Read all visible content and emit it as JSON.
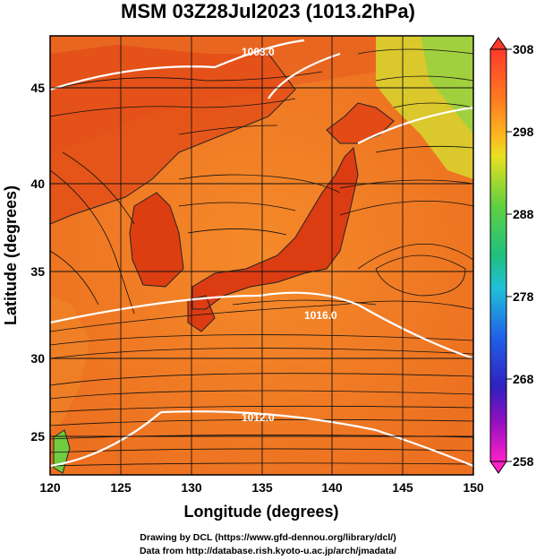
{
  "title": "MSM 03Z28Jul2023 (1013.2hPa)",
  "xlabel": "Longitude (degrees)",
  "ylabel": "Latitude  (degrees)",
  "xticks": [
    "120",
    "125",
    "130",
    "135",
    "140",
    "145",
    "150"
  ],
  "yticks": [
    "25",
    "30",
    "35",
    "40",
    "45"
  ],
  "colorbar": {
    "ticks": [
      "308",
      "298",
      "288",
      "278",
      "268",
      "258"
    ],
    "colors": [
      "#ff4030",
      "#ff7f1e",
      "#e8e020",
      "#30c040",
      "#20c0d0",
      "#2050e0",
      "#a000c0",
      "#ff20c8"
    ]
  },
  "isobar_labels": [
    "1003.0",
    "1016.0",
    "1012.0"
  ],
  "credits": [
    "Drawing by DCL (https://www.gfd-dennou.org/library/dcl/)",
    "Data from http://database.rish.kyoto-u.ac.jp/arch/jmadata/"
  ],
  "colors": {
    "land_hot": "#e04818",
    "sea": "#f07a24",
    "cool": "#d8d830",
    "green": "#78d040"
  }
}
